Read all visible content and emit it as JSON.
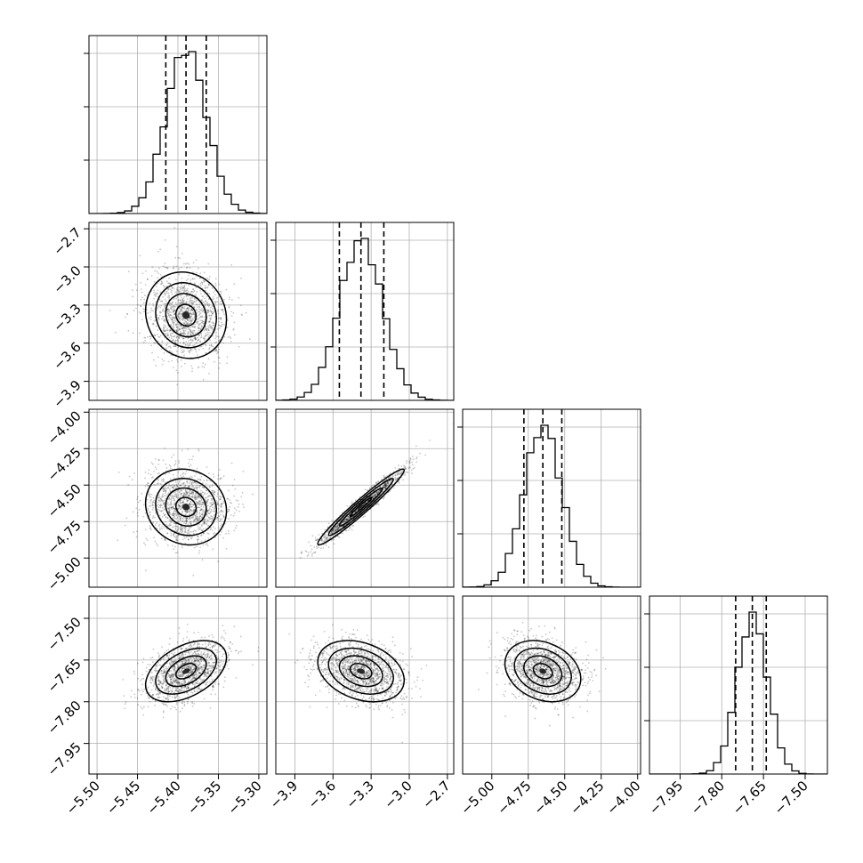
{
  "chart_data": {
    "type": "corner",
    "title": "",
    "parameters": [
      {
        "label": "",
        "range": [
          -5.51,
          -5.29
        ],
        "ticks": [
          -5.5,
          -5.45,
          -5.4,
          -5.35,
          -5.3
        ],
        "tick_labels": [
          "−5.50",
          "−5.45",
          "−5.40",
          "−5.35",
          "−5.30"
        ],
        "mean": -5.39,
        "sigma": 0.025,
        "quantiles": [
          -5.415,
          -5.39,
          -5.365
        ]
      },
      {
        "label": "",
        "range": [
          -4.05,
          -2.65
        ],
        "ticks": [
          -3.9,
          -3.6,
          -3.3,
          -3.0,
          -2.7
        ],
        "tick_labels": [
          "−3.9",
          "−3.6",
          "−3.3",
          "−3.0",
          "−2.7"
        ],
        "mean": -3.38,
        "sigma": 0.17,
        "quantiles": [
          -3.55,
          -3.38,
          -3.2
        ]
      },
      {
        "label": "",
        "range": [
          -5.2,
          -3.98
        ],
        "ticks": [
          -5.0,
          -4.75,
          -4.5,
          -4.25,
          -4.0
        ],
        "tick_labels": [
          "−5.00",
          "−4.75",
          "−4.50",
          "−4.25",
          "−4.00"
        ],
        "mean": -4.65,
        "sigma": 0.13,
        "quantiles": [
          -4.78,
          -4.65,
          -4.52
        ]
      },
      {
        "label": "",
        "range": [
          -8.06,
          -7.42
        ],
        "ticks": [
          -7.95,
          -7.8,
          -7.65,
          -7.5
        ],
        "tick_labels": [
          "−7.95",
          "−7.80",
          "−7.65",
          "−7.50"
        ],
        "mean": -7.69,
        "sigma": 0.055,
        "quantiles": [
          -7.75,
          -7.69,
          -7.64
        ]
      }
    ],
    "correlations": {
      "1-0": -0.1,
      "2-0": -0.1,
      "2-1": 0.97,
      "3-0": 0.45,
      "3-1": -0.3,
      "3-2": -0.25
    },
    "grid": true
  }
}
